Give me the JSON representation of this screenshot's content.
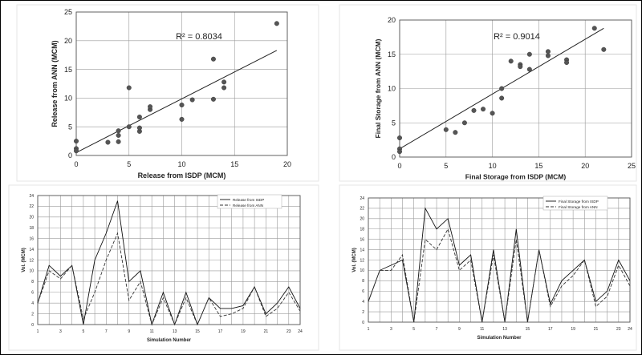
{
  "chart_data": [
    {
      "type": "scatter",
      "xlabel": "Release from ISDP (MCM)",
      "ylabel": "Release from ANN (MCM)",
      "xlim": [
        0,
        20
      ],
      "ylim": [
        0,
        25
      ],
      "xticks": [
        0,
        5,
        10,
        15,
        20
      ],
      "yticks": [
        0,
        5,
        10,
        15,
        20,
        25
      ],
      "grid": true,
      "r2_label": "R² = 0.8034",
      "trendline": {
        "x": [
          0,
          19
        ],
        "y": [
          0.5,
          18.3
        ]
      },
      "points": [
        {
          "x": 0,
          "y": 2.5
        },
        {
          "x": 0,
          "y": 1.2
        },
        {
          "x": 0,
          "y": 0.8
        },
        {
          "x": 3,
          "y": 2.3
        },
        {
          "x": 4,
          "y": 2.4
        },
        {
          "x": 4,
          "y": 3.5
        },
        {
          "x": 4,
          "y": 4.3
        },
        {
          "x": 5,
          "y": 5.0
        },
        {
          "x": 5,
          "y": 11.8
        },
        {
          "x": 6,
          "y": 4.2
        },
        {
          "x": 6,
          "y": 4.8
        },
        {
          "x": 6,
          "y": 6.7
        },
        {
          "x": 7,
          "y": 8.0
        },
        {
          "x": 7,
          "y": 8.5
        },
        {
          "x": 10,
          "y": 6.3
        },
        {
          "x": 10,
          "y": 8.8
        },
        {
          "x": 11,
          "y": 9.7
        },
        {
          "x": 13,
          "y": 9.8
        },
        {
          "x": 13,
          "y": 16.8
        },
        {
          "x": 14,
          "y": 11.8
        },
        {
          "x": 14,
          "y": 12.8
        },
        {
          "x": 19,
          "y": 23.0
        }
      ]
    },
    {
      "type": "scatter",
      "xlabel": "Final Storage from ISDP (MCM)",
      "ylabel": "Final Storage from ANN (MCM)",
      "xlim": [
        0,
        25
      ],
      "ylim": [
        0,
        20
      ],
      "xticks": [
        0,
        5,
        10,
        15,
        20,
        25
      ],
      "yticks": [
        0,
        5,
        10,
        15,
        20
      ],
      "grid": true,
      "r2_label": "R² = 0.9014",
      "trendline": {
        "x": [
          0,
          22
        ],
        "y": [
          1.2,
          18.8
        ]
      },
      "points": [
        {
          "x": 0,
          "y": 2.8
        },
        {
          "x": 0,
          "y": 1.2
        },
        {
          "x": 0,
          "y": 0.8
        },
        {
          "x": 5,
          "y": 4.0
        },
        {
          "x": 6,
          "y": 3.6
        },
        {
          "x": 7,
          "y": 5.0
        },
        {
          "x": 8,
          "y": 6.8
        },
        {
          "x": 9,
          "y": 7.0
        },
        {
          "x": 10,
          "y": 6.4
        },
        {
          "x": 11,
          "y": 8.6
        },
        {
          "x": 11,
          "y": 10.0
        },
        {
          "x": 12,
          "y": 14.0
        },
        {
          "x": 13,
          "y": 13.5
        },
        {
          "x": 13,
          "y": 13.2
        },
        {
          "x": 14,
          "y": 12.8
        },
        {
          "x": 14,
          "y": 15.0
        },
        {
          "x": 16,
          "y": 14.8
        },
        {
          "x": 16,
          "y": 15.4
        },
        {
          "x": 18,
          "y": 14.2
        },
        {
          "x": 18,
          "y": 13.8
        },
        {
          "x": 21,
          "y": 18.8
        },
        {
          "x": 22,
          "y": 15.7
        }
      ]
    },
    {
      "type": "line",
      "xlabel": "Simulation Number",
      "ylabel": "Vol. (MCM)",
      "x": [
        1,
        2,
        3,
        4,
        5,
        6,
        7,
        8,
        9,
        10,
        11,
        12,
        13,
        14,
        15,
        16,
        17,
        18,
        19,
        20,
        21,
        22,
        23,
        24
      ],
      "xticks": [
        1,
        3,
        5,
        7,
        9,
        11,
        13,
        15,
        17,
        19,
        21,
        23,
        24
      ],
      "ylim": [
        0,
        24
      ],
      "yticks": [
        0,
        2,
        4,
        6,
        8,
        10,
        12,
        14,
        16,
        18,
        20,
        22,
        24
      ],
      "grid": true,
      "legend_position": "top-right",
      "series": [
        {
          "name": "Release from ISDP",
          "values": [
            4,
            11,
            9,
            11,
            0,
            12,
            17,
            23,
            8,
            10,
            0,
            6,
            0,
            6,
            0,
            5,
            3,
            3,
            3.5,
            7,
            2,
            4,
            7,
            3
          ]
        },
        {
          "name": "Release from ANN",
          "values": [
            4,
            10,
            8.5,
            11,
            1,
            6,
            12,
            17,
            4.5,
            8,
            0,
            5,
            0,
            5,
            0,
            5,
            1.5,
            2,
            3,
            7,
            1.5,
            3,
            6,
            2.5
          ]
        }
      ]
    },
    {
      "type": "line",
      "xlabel": "Simulation Number",
      "ylabel": "Vol. (MCM)",
      "x": [
        1,
        2,
        3,
        4,
        5,
        6,
        7,
        8,
        9,
        10,
        11,
        12,
        13,
        14,
        15,
        16,
        17,
        18,
        19,
        20,
        21,
        22,
        23,
        24
      ],
      "xticks": [
        1,
        3,
        5,
        7,
        9,
        11,
        13,
        15,
        17,
        19,
        21,
        23,
        24
      ],
      "ylim": [
        0,
        24
      ],
      "yticks": [
        0,
        2,
        4,
        6,
        8,
        10,
        12,
        14,
        16,
        18,
        20,
        22,
        24
      ],
      "grid": true,
      "legend_position": "top-right",
      "series": [
        {
          "name": "Final Storage from ISDP",
          "values": [
            4,
            10,
            11,
            12,
            0,
            22,
            18,
            20,
            11,
            13,
            0,
            14,
            0,
            18,
            0,
            14,
            3.5,
            8,
            10,
            12,
            4,
            6,
            12,
            8
          ]
        },
        {
          "name": "Final Storage from ANN",
          "values": [
            4,
            10,
            10,
            13,
            0,
            16,
            14,
            18,
            10,
            12,
            0,
            13,
            0,
            16,
            0,
            14,
            3,
            7,
            9,
            12,
            3,
            5,
            11,
            7
          ]
        }
      ]
    }
  ]
}
